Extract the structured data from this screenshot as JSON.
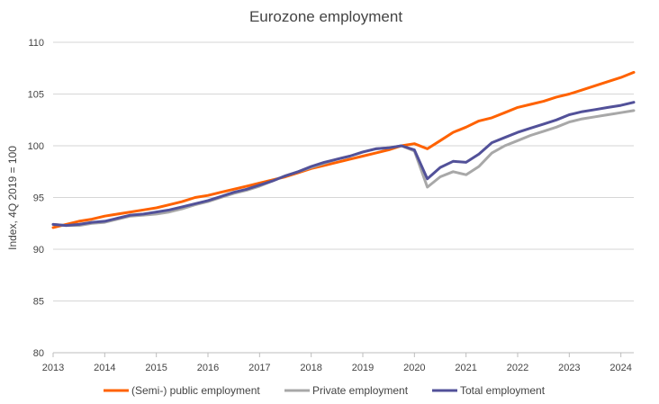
{
  "chart_data": {
    "type": "line",
    "title": "Eurozone employment",
    "xlabel": "",
    "ylabel": "Index, 4Q 2019 = 100",
    "ylim": [
      80,
      110
    ],
    "xlim": [
      2013.0,
      2024.25
    ],
    "yticks": [
      "80",
      "85",
      "90",
      "95",
      "100",
      "105",
      "110"
    ],
    "xticks": [
      "2013",
      "2014",
      "2015",
      "2016",
      "2017",
      "2018",
      "2019",
      "2020",
      "2021",
      "2022",
      "2023",
      "2024"
    ],
    "grid": "horizontal",
    "legend": "bottom",
    "x": [
      2013.0,
      2013.25,
      2013.5,
      2013.75,
      2014.0,
      2014.25,
      2014.5,
      2014.75,
      2015.0,
      2015.25,
      2015.5,
      2015.75,
      2016.0,
      2016.25,
      2016.5,
      2016.75,
      2017.0,
      2017.25,
      2017.5,
      2017.75,
      2018.0,
      2018.25,
      2018.5,
      2018.75,
      2019.0,
      2019.25,
      2019.5,
      2019.75,
      2020.0,
      2020.25,
      2020.5,
      2020.75,
      2021.0,
      2021.25,
      2021.5,
      2021.75,
      2022.0,
      2022.25,
      2022.5,
      2022.75,
      2023.0,
      2023.25,
      2023.5,
      2023.75,
      2024.0,
      2024.25
    ],
    "series": [
      {
        "name": "(Semi-) public employment",
        "color": "#ff6200",
        "values": [
          92.1,
          92.4,
          92.7,
          92.9,
          93.2,
          93.4,
          93.6,
          93.8,
          94.0,
          94.3,
          94.6,
          95.0,
          95.2,
          95.5,
          95.8,
          96.1,
          96.4,
          96.7,
          97.0,
          97.4,
          97.8,
          98.1,
          98.4,
          98.7,
          99.0,
          99.3,
          99.6,
          100.0,
          100.2,
          99.7,
          100.5,
          101.3,
          101.8,
          102.4,
          102.7,
          103.2,
          103.7,
          104.0,
          104.3,
          104.7,
          105.0,
          105.4,
          105.8,
          106.2,
          106.6,
          107.1
        ]
      },
      {
        "name": "Private employment",
        "color": "#a8a8a8",
        "values": [
          92.4,
          92.3,
          92.3,
          92.5,
          92.6,
          92.9,
          93.2,
          93.3,
          93.4,
          93.6,
          93.9,
          94.3,
          94.6,
          95.0,
          95.4,
          95.7,
          96.1,
          96.6,
          97.1,
          97.5,
          97.9,
          98.3,
          98.7,
          99.0,
          99.4,
          99.7,
          99.8,
          100.0,
          99.5,
          96.0,
          97.0,
          97.5,
          97.2,
          98.0,
          99.3,
          100.0,
          100.5,
          101.0,
          101.4,
          101.8,
          102.3,
          102.6,
          102.8,
          103.0,
          103.2,
          103.4
        ]
      },
      {
        "name": "Total employment",
        "color": "#525199",
        "values": [
          92.4,
          92.3,
          92.4,
          92.6,
          92.7,
          93.0,
          93.3,
          93.4,
          93.6,
          93.8,
          94.1,
          94.4,
          94.7,
          95.1,
          95.5,
          95.8,
          96.2,
          96.6,
          97.1,
          97.5,
          98.0,
          98.4,
          98.7,
          99.0,
          99.4,
          99.7,
          99.8,
          100.0,
          99.6,
          96.8,
          97.9,
          98.5,
          98.4,
          99.2,
          100.3,
          100.8,
          101.3,
          101.7,
          102.1,
          102.5,
          103.0,
          103.3,
          103.5,
          103.7,
          103.9,
          104.2
        ]
      }
    ]
  }
}
